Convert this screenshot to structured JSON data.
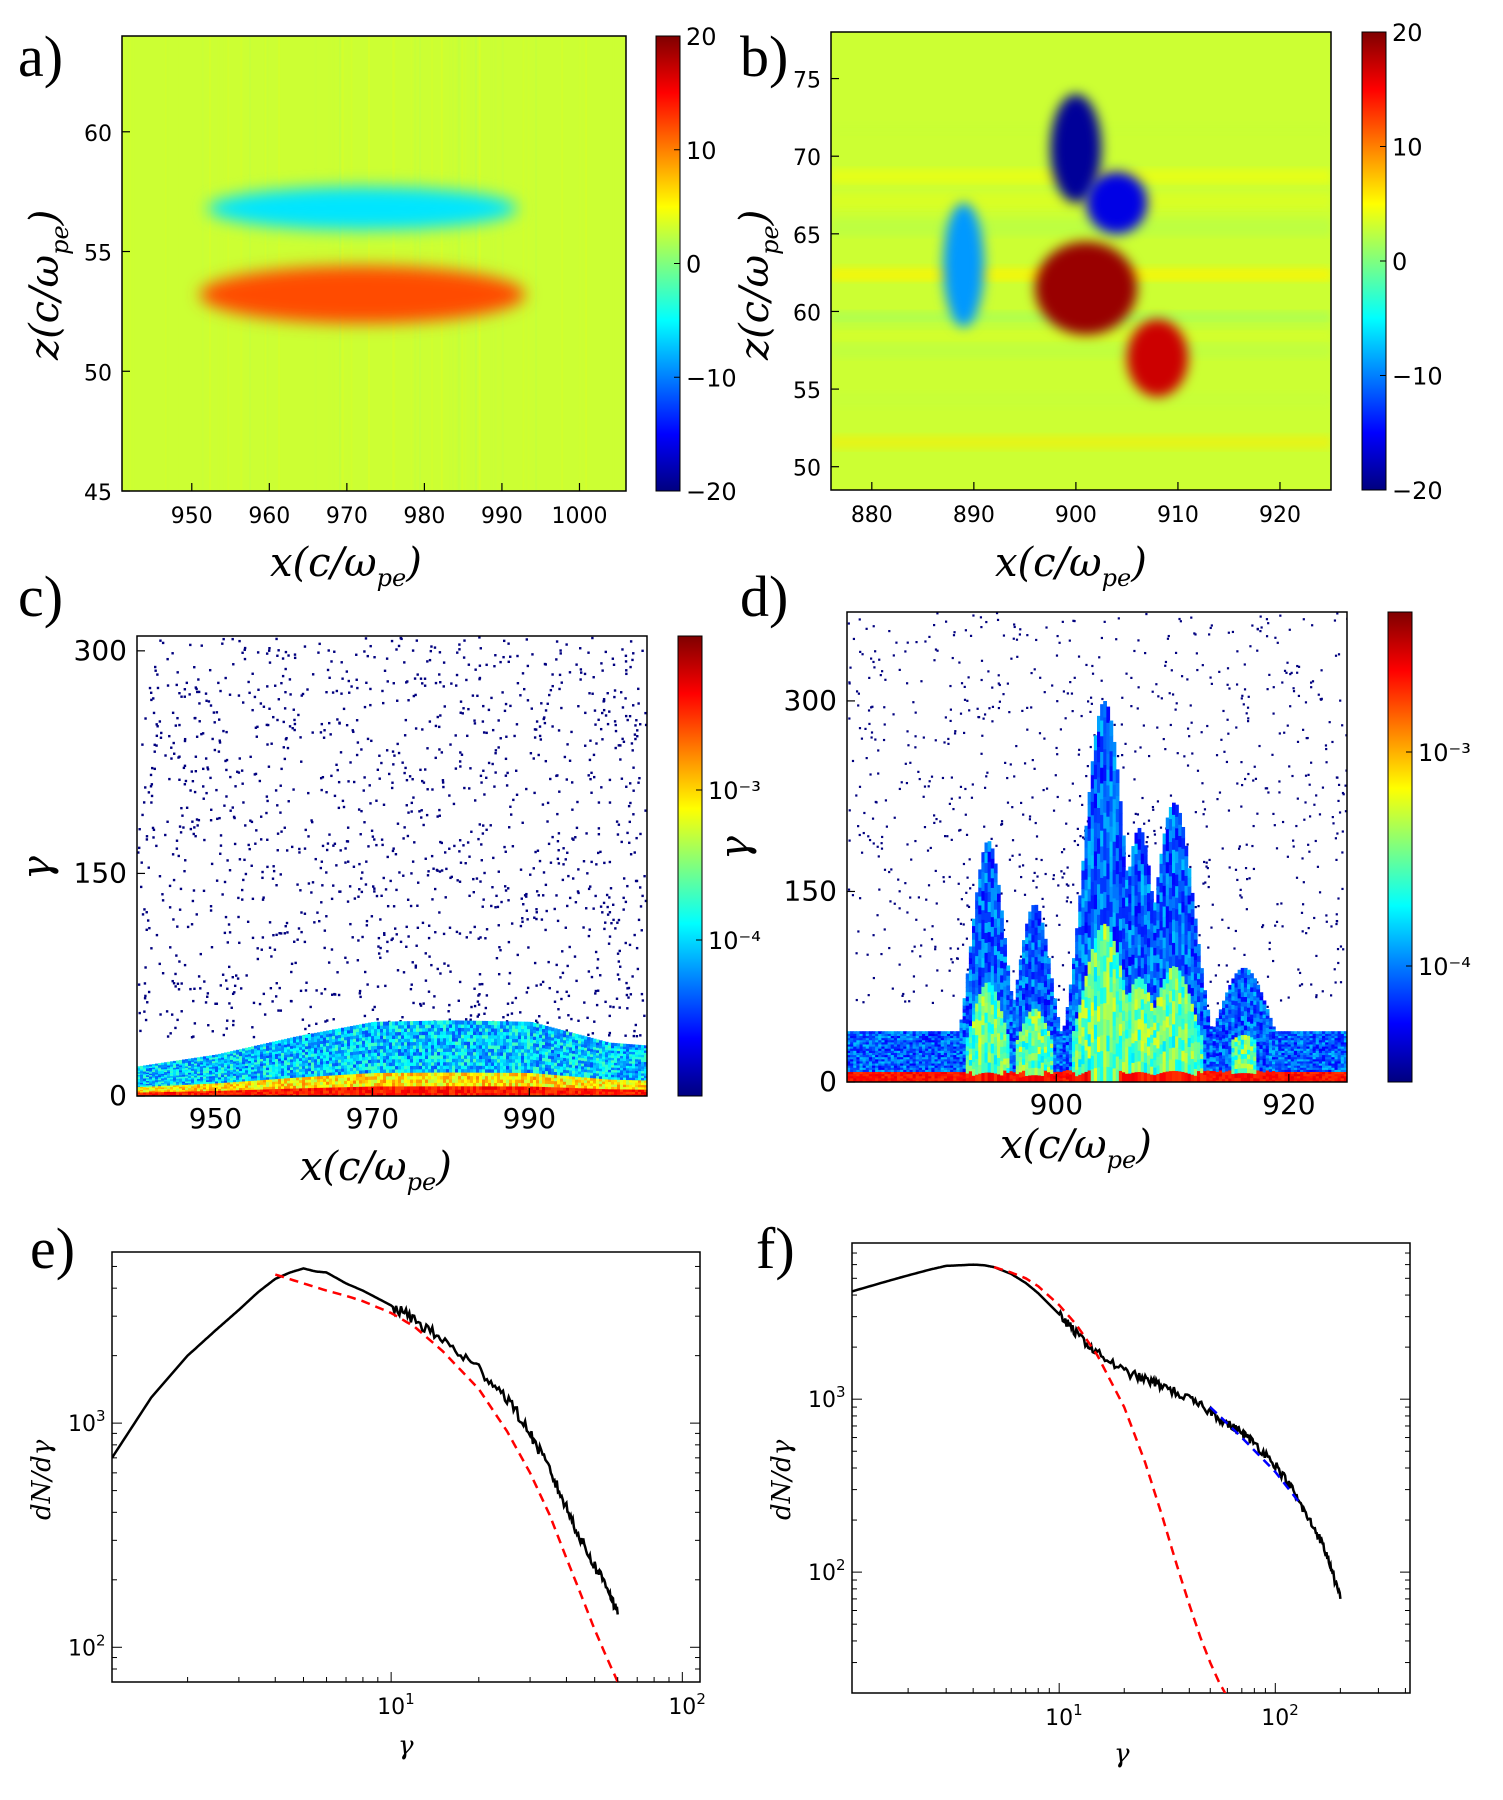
{
  "colormap": [
    "#00007f",
    "#0000ff",
    "#007fff",
    "#00ffff",
    "#7fff7f",
    "#ffff00",
    "#ff7f00",
    "#ff0000",
    "#7f0000"
  ],
  "panel_labels": [
    "a)",
    "b)",
    "c)",
    "d)",
    "e)",
    "f)"
  ],
  "chart_data": [
    {
      "id": "a",
      "type": "heatmap",
      "xlabel_main": "x(c/ω",
      "xlabel_sub": "pe",
      "xlabel_close": ")",
      "ylabel_main": "z(c/ω",
      "ylabel_sub": "pe",
      "ylabel_close": ")",
      "xlim": [
        941,
        1006
      ],
      "ylim": [
        45,
        64
      ],
      "xticks": [
        950,
        960,
        970,
        980,
        990,
        1000
      ],
      "yticks": [
        45,
        50,
        55,
        60
      ],
      "colorbar": {
        "range": [
          -20,
          20
        ],
        "ticks": [
          "20",
          "10",
          "0",
          "−10",
          "−20"
        ],
        "tick_values": [
          20,
          10,
          0,
          -10,
          -20
        ]
      },
      "background_value": 3,
      "features": [
        {
          "label": "negative band",
          "x_center": 972,
          "y_center": 56.8,
          "x_halfwidth": 20,
          "y_halfwidth": 0.9,
          "value": -6
        },
        {
          "label": "positive band",
          "x_center": 972,
          "y_center": 53.2,
          "x_halfwidth": 21,
          "y_halfwidth": 1.2,
          "value": 12
        }
      ]
    },
    {
      "id": "b",
      "type": "heatmap",
      "xlabel_main": "x(c/ω",
      "xlabel_sub": "pe",
      "xlabel_close": ")",
      "ylabel_main": "z(c/ω",
      "ylabel_sub": "pe",
      "ylabel_close": ")",
      "xlim": [
        876,
        925
      ],
      "ylim": [
        48.5,
        78
      ],
      "xticks": [
        880,
        890,
        900,
        910,
        920
      ],
      "yticks": [
        50,
        55,
        60,
        65,
        70,
        75
      ],
      "colorbar": {
        "range": [
          -20,
          20
        ],
        "ticks": [
          "20",
          "10",
          "0",
          "−10",
          "−20"
        ],
        "tick_values": [
          20,
          10,
          0,
          -10,
          -20
        ]
      },
      "background_value": 3,
      "features": [
        {
          "label": "upper negative lobe",
          "x_center": 900,
          "y_center": 70.5,
          "x_halfwidth": 2.5,
          "y_halfwidth": 3.5,
          "value": -19
        },
        {
          "label": "negative arm",
          "x_center": 904,
          "y_center": 67,
          "x_halfwidth": 3,
          "y_halfwidth": 2,
          "value": -16
        },
        {
          "label": "left negative filament",
          "x_center": 889,
          "y_center": 63,
          "x_halfwidth": 2,
          "y_halfwidth": 4,
          "value": -9
        },
        {
          "label": "positive core",
          "x_center": 901,
          "y_center": 61.5,
          "x_halfwidth": 5,
          "y_halfwidth": 3,
          "value": 19
        },
        {
          "label": "positive tail",
          "x_center": 908,
          "y_center": 57,
          "x_halfwidth": 3,
          "y_halfwidth": 2.5,
          "value": 17
        }
      ]
    },
    {
      "id": "c",
      "type": "heatmap",
      "xlabel_main": "x(c/ω",
      "xlabel_sub": "pe",
      "xlabel_close": ")",
      "ylabel_main": "γ",
      "xlim": [
        940,
        1005
      ],
      "ylim": [
        0,
        310
      ],
      "xticks": [
        950,
        970,
        990
      ],
      "yticks": [
        0,
        150,
        300
      ],
      "colorbar": {
        "scale": "log",
        "ticks": [
          "10⁻³",
          "10⁻⁴"
        ],
        "tick_values": [
          0.001,
          0.0001
        ]
      },
      "band_top": [
        [
          940,
          20
        ],
        [
          950,
          28
        ],
        [
          960,
          40
        ],
        [
          970,
          50
        ],
        [
          980,
          51
        ],
        [
          990,
          50
        ],
        [
          1000,
          36
        ],
        [
          1005,
          34
        ]
      ]
    },
    {
      "id": "d",
      "type": "heatmap",
      "xlabel_main": "x(c/ω",
      "xlabel_sub": "pe",
      "xlabel_close": ")",
      "ylabel_main": "γ",
      "xlim": [
        882,
        925
      ],
      "ylim": [
        0,
        370
      ],
      "xticks": [
        900,
        920
      ],
      "yticks": [
        0,
        150,
        300
      ],
      "colorbar": {
        "scale": "log",
        "ticks": [
          "10⁻³",
          "10⁻⁴"
        ],
        "tick_values": [
          0.001,
          0.0001
        ]
      },
      "peaks": [
        {
          "x": 894,
          "height": 190,
          "width": 2
        },
        {
          "x": 898,
          "height": 140,
          "width": 2
        },
        {
          "x": 904,
          "height": 300,
          "width": 2.5
        },
        {
          "x": 907,
          "height": 200,
          "width": 2
        },
        {
          "x": 910,
          "height": 220,
          "width": 2.5
        },
        {
          "x": 916,
          "height": 90,
          "width": 3
        }
      ]
    },
    {
      "id": "e",
      "type": "line",
      "xscale": "log",
      "yscale": "log",
      "xlim": [
        1.1,
        115
      ],
      "ylim": [
        70,
        5800
      ],
      "xticks": [
        {
          "value": 10,
          "base": "10",
          "exp": "1"
        },
        {
          "value": 100,
          "base": "10",
          "exp": "2"
        }
      ],
      "yticks": [
        {
          "value": 100,
          "base": "10",
          "exp": "2"
        },
        {
          "value": 1000,
          "base": "10",
          "exp": "3"
        }
      ],
      "xlabel": "γ",
      "ylabel": "dN/dγ",
      "series": [
        {
          "style": "solid",
          "color": "#000000",
          "x": [
            1.1,
            1.5,
            2,
            2.5,
            3,
            3.5,
            4,
            4.5,
            5,
            5.5,
            6,
            7,
            8,
            10,
            12,
            15,
            20,
            25,
            30,
            35,
            40,
            45,
            50,
            55,
            60
          ],
          "y": [
            700,
            1300,
            2000,
            2600,
            3200,
            3850,
            4400,
            4700,
            4900,
            4750,
            4700,
            4200,
            3900,
            3350,
            2900,
            2350,
            1750,
            1300,
            900,
            620,
            420,
            300,
            230,
            190,
            140
          ]
        },
        {
          "style": "dashed",
          "color": "#ff0000",
          "x": [
            4,
            5,
            6,
            7,
            8,
            10,
            12,
            15,
            20,
            25,
            30,
            35,
            40,
            45,
            50,
            55,
            60
          ],
          "y": [
            4600,
            4200,
            3900,
            3700,
            3500,
            3100,
            2700,
            2100,
            1420,
            920,
            600,
            390,
            250,
            170,
            120,
            90,
            70
          ]
        }
      ]
    },
    {
      "id": "f",
      "type": "line",
      "xscale": "log",
      "yscale": "log",
      "xlim": [
        1.1,
        420
      ],
      "ylim": [
        20,
        8000
      ],
      "xticks": [
        {
          "value": 10,
          "base": "10",
          "exp": "1"
        },
        {
          "value": 100,
          "base": "10",
          "exp": "2"
        }
      ],
      "yticks": [
        {
          "value": 100,
          "base": "10",
          "exp": "2"
        },
        {
          "value": 1000,
          "base": "10",
          "exp": "3"
        }
      ],
      "xlabel": "γ",
      "ylabel": "dN/dγ",
      "series": [
        {
          "style": "solid",
          "color": "#000000",
          "x": [
            1.1,
            1.5,
            2,
            2.5,
            3,
            3.5,
            4,
            4.5,
            5,
            6,
            7,
            8,
            10,
            12,
            15,
            20,
            25,
            30,
            40,
            50,
            60,
            70,
            80,
            100,
            120,
            140,
            160,
            180,
            200
          ],
          "y": [
            4200,
            4700,
            5200,
            5600,
            5900,
            5950,
            6000,
            5950,
            5800,
            5300,
            4700,
            4100,
            3100,
            2400,
            1850,
            1450,
            1300,
            1200,
            1000,
            850,
            720,
            640,
            560,
            420,
            300,
            210,
            160,
            110,
            70
          ]
        },
        {
          "style": "dashed",
          "color": "#ff0000",
          "x": [
            5,
            6,
            7,
            8,
            10,
            12,
            15,
            20,
            25,
            30,
            35,
            40,
            45,
            50,
            55,
            60
          ],
          "y": [
            5800,
            5400,
            5000,
            4500,
            3500,
            2700,
            1800,
            900,
            430,
            210,
            110,
            65,
            42,
            30,
            23,
            19
          ]
        },
        {
          "style": "dashed",
          "color": "#0000ff",
          "x": [
            50,
            70,
            100,
            130
          ],
          "y": [
            900,
            600,
            380,
            250
          ]
        }
      ]
    }
  ]
}
